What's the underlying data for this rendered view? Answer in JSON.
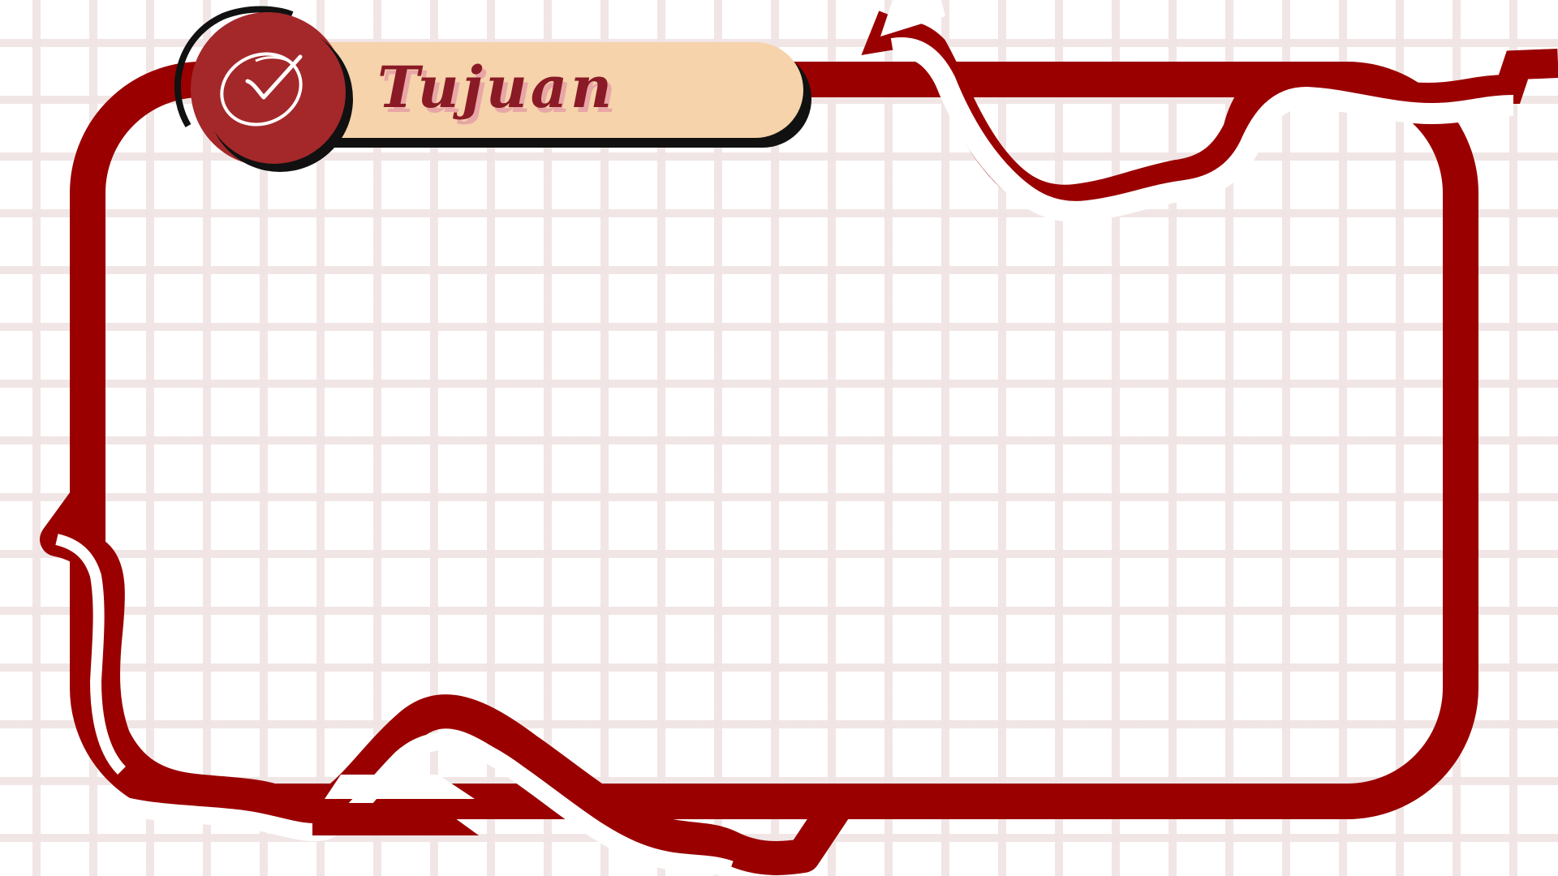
{
  "header": {
    "title": "Tujuan",
    "icon": "check-circle-icon"
  },
  "colors": {
    "frame": "#9a0000",
    "badge_fill": "#a4282a",
    "pill_fill": "#f6d3ab",
    "title_text": "#8a1a26",
    "title_shadow": "#e8a6a6",
    "grid": "#f3e6e6"
  }
}
